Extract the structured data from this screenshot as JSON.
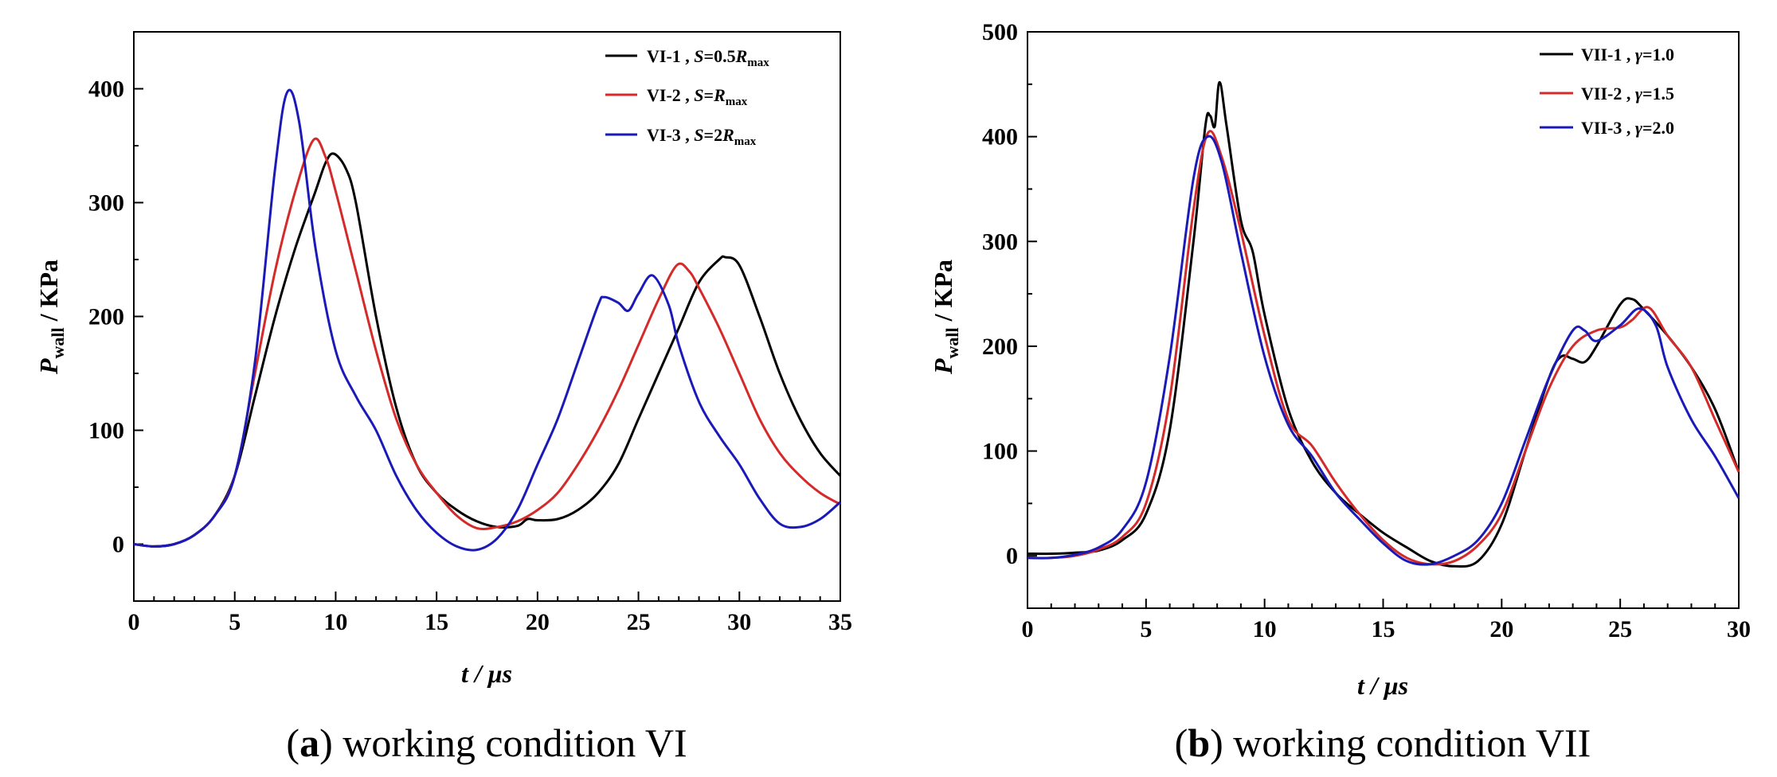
{
  "chart_data": [
    {
      "type": "line",
      "caption_letter": "a",
      "caption_rest": " working condition VI",
      "xlabel": "t / μs",
      "ylabel_main": "P",
      "ylabel_sub": "wall",
      "ylabel_rest": " / KPa",
      "xlim": [
        0,
        35
      ],
      "ylim": [
        -50,
        450
      ],
      "xticks": [
        0,
        5,
        10,
        15,
        20,
        25,
        30,
        35
      ],
      "yticks": [
        0,
        100,
        200,
        300,
        400
      ],
      "series": [
        {
          "name": "VI-1",
          "legend_prefix": "VI-1 , ",
          "legend_symbol": "S",
          "legend_value": "=0.5",
          "legend_R": "R",
          "legend_sub": "max",
          "color": "#000000",
          "points": [
            [
              0,
              0
            ],
            [
              1,
              -2
            ],
            [
              2,
              0
            ],
            [
              3,
              8
            ],
            [
              4,
              25
            ],
            [
              5,
              60
            ],
            [
              6,
              130
            ],
            [
              7,
              200
            ],
            [
              8,
              260
            ],
            [
              9,
              310
            ],
            [
              9.5,
              335
            ],
            [
              9.9,
              343
            ],
            [
              10.5,
              330
            ],
            [
              11,
              300
            ],
            [
              12,
              200
            ],
            [
              13,
              120
            ],
            [
              14,
              70
            ],
            [
              15,
              45
            ],
            [
              16,
              30
            ],
            [
              17,
              20
            ],
            [
              18,
              15
            ],
            [
              19,
              16
            ],
            [
              19.5,
              22
            ],
            [
              20,
              21
            ],
            [
              21,
              22
            ],
            [
              22,
              30
            ],
            [
              23,
              45
            ],
            [
              24,
              70
            ],
            [
              25,
              110
            ],
            [
              26,
              150
            ],
            [
              27,
              190
            ],
            [
              28,
              230
            ],
            [
              29,
              250
            ],
            [
              29.3,
              252
            ],
            [
              30,
              245
            ],
            [
              31,
              200
            ],
            [
              32,
              150
            ],
            [
              33,
              110
            ],
            [
              34,
              80
            ],
            [
              35,
              60
            ]
          ]
        },
        {
          "name": "VI-2",
          "legend_prefix": "VI-2 , ",
          "legend_symbol": "S",
          "legend_value": "=",
          "legend_R": "R",
          "legend_sub": "max",
          "color": "#d42a2a",
          "points": [
            [
              0,
              0
            ],
            [
              1,
              -2
            ],
            [
              2,
              0
            ],
            [
              3,
              8
            ],
            [
              4,
              25
            ],
            [
              5,
              60
            ],
            [
              6,
              150
            ],
            [
              7,
              240
            ],
            [
              8,
              310
            ],
            [
              8.9,
              355
            ],
            [
              9.5,
              340
            ],
            [
              10,
              310
            ],
            [
              11,
              240
            ],
            [
              12,
              170
            ],
            [
              13,
              110
            ],
            [
              14,
              70
            ],
            [
              15,
              45
            ],
            [
              16,
              25
            ],
            [
              17,
              14
            ],
            [
              18,
              15
            ],
            [
              19,
              20
            ],
            [
              20,
              30
            ],
            [
              21,
              45
            ],
            [
              22,
              70
            ],
            [
              23,
              100
            ],
            [
              24,
              135
            ],
            [
              25,
              175
            ],
            [
              26,
              215
            ],
            [
              26.9,
              245
            ],
            [
              27.5,
              240
            ],
            [
              28,
              225
            ],
            [
              29,
              190
            ],
            [
              30,
              150
            ],
            [
              31,
              110
            ],
            [
              32,
              80
            ],
            [
              33,
              60
            ],
            [
              34,
              45
            ],
            [
              35,
              35
            ]
          ]
        },
        {
          "name": "VI-3",
          "legend_prefix": "VI-3 , ",
          "legend_symbol": "S",
          "legend_value": "=2",
          "legend_R": "R",
          "legend_sub": "max",
          "color": "#1a1ab8",
          "points": [
            [
              0,
              0
            ],
            [
              1,
              -2
            ],
            [
              2,
              0
            ],
            [
              3,
              8
            ],
            [
              4,
              25
            ],
            [
              5,
              60
            ],
            [
              6,
              160
            ],
            [
              7,
              330
            ],
            [
              7.6,
              397
            ],
            [
              8.2,
              370
            ],
            [
              9,
              260
            ],
            [
              10,
              170
            ],
            [
              11,
              130
            ],
            [
              12,
              100
            ],
            [
              13,
              60
            ],
            [
              14,
              30
            ],
            [
              15,
              10
            ],
            [
              16,
              -2
            ],
            [
              17,
              -5
            ],
            [
              18,
              5
            ],
            [
              19,
              30
            ],
            [
              20,
              70
            ],
            [
              21,
              110
            ],
            [
              22,
              160
            ],
            [
              23,
              210
            ],
            [
              23.3,
              217
            ],
            [
              24,
              212
            ],
            [
              24.5,
              205
            ],
            [
              25,
              220
            ],
            [
              25.7,
              236
            ],
            [
              26.5,
              210
            ],
            [
              27,
              175
            ],
            [
              28,
              125
            ],
            [
              29,
              95
            ],
            [
              30,
              70
            ],
            [
              31,
              40
            ],
            [
              32,
              18
            ],
            [
              33,
              15
            ],
            [
              34,
              22
            ],
            [
              35,
              37
            ]
          ]
        }
      ]
    },
    {
      "type": "line",
      "caption_letter": "b",
      "caption_rest": " working condition VII",
      "xlabel": "t / μs",
      "ylabel_main": "P",
      "ylabel_sub": "wall",
      "ylabel_rest": " / KPa",
      "xlim": [
        0,
        30
      ],
      "ylim": [
        -50,
        500
      ],
      "xticks": [
        0,
        5,
        10,
        15,
        20,
        25,
        30
      ],
      "yticks": [
        0,
        100,
        200,
        300,
        400,
        500
      ],
      "series": [
        {
          "name": "VII-1",
          "legend_prefix": "VII-1 , ",
          "legend_symbol": "γ",
          "legend_value": "=1.0",
          "legend_R": "",
          "legend_sub": "",
          "color": "#000000",
          "points": [
            [
              0,
              2
            ],
            [
              1,
              2
            ],
            [
              2,
              3
            ],
            [
              3,
              5
            ],
            [
              4,
              15
            ],
            [
              5,
              40
            ],
            [
              6,
              120
            ],
            [
              7,
              300
            ],
            [
              7.5,
              410
            ],
            [
              7.7,
              420
            ],
            [
              7.9,
              410
            ],
            [
              8.1,
              452
            ],
            [
              8.4,
              410
            ],
            [
              9,
              320
            ],
            [
              9.5,
              290
            ],
            [
              10,
              230
            ],
            [
              11,
              140
            ],
            [
              12,
              90
            ],
            [
              13,
              60
            ],
            [
              14,
              40
            ],
            [
              15,
              22
            ],
            [
              16,
              8
            ],
            [
              17,
              -5
            ],
            [
              18,
              -10
            ],
            [
              19,
              -5
            ],
            [
              20,
              30
            ],
            [
              21,
              100
            ],
            [
              22,
              170
            ],
            [
              22.5,
              190
            ],
            [
              23,
              188
            ],
            [
              23.5,
              185
            ],
            [
              24,
              200
            ],
            [
              25,
              240
            ],
            [
              25.5,
              245
            ],
            [
              26,
              235
            ],
            [
              27,
              210
            ],
            [
              28,
              180
            ],
            [
              29,
              140
            ],
            [
              30,
              80
            ]
          ]
        },
        {
          "name": "VII-2",
          "legend_prefix": "VII-2 , ",
          "legend_symbol": "γ",
          "legend_value": "=1.5",
          "legend_R": "",
          "legend_sub": "",
          "color": "#d42a2a",
          "points": [
            [
              0,
              -2
            ],
            [
              1,
              -2
            ],
            [
              2,
              0
            ],
            [
              3,
              6
            ],
            [
              4,
              18
            ],
            [
              5,
              50
            ],
            [
              6,
              150
            ],
            [
              7,
              330
            ],
            [
              7.6,
              403
            ],
            [
              8.2,
              380
            ],
            [
              9,
              310
            ],
            [
              10,
              210
            ],
            [
              11,
              130
            ],
            [
              12,
              105
            ],
            [
              13,
              70
            ],
            [
              14,
              40
            ],
            [
              15,
              15
            ],
            [
              16,
              -2
            ],
            [
              17,
              -8
            ],
            [
              18,
              -5
            ],
            [
              19,
              10
            ],
            [
              20,
              40
            ],
            [
              21,
              100
            ],
            [
              22,
              160
            ],
            [
              23,
              200
            ],
            [
              24,
              215
            ],
            [
              25,
              218
            ],
            [
              25.5,
              225
            ],
            [
              26.2,
              237
            ],
            [
              27,
              210
            ],
            [
              28,
              180
            ],
            [
              29,
              130
            ],
            [
              30,
              80
            ]
          ]
        },
        {
          "name": "VII-3",
          "legend_prefix": "VII-3 , ",
          "legend_symbol": "γ",
          "legend_value": "=2.0",
          "legend_R": "",
          "legend_sub": "",
          "color": "#1a1ab8",
          "points": [
            [
              0,
              -2
            ],
            [
              1,
              -2
            ],
            [
              2,
              1
            ],
            [
              3,
              8
            ],
            [
              4,
              25
            ],
            [
              5,
              70
            ],
            [
              6,
              190
            ],
            [
              7,
              360
            ],
            [
              7.6,
              400
            ],
            [
              8.2,
              375
            ],
            [
              9,
              290
            ],
            [
              10,
              190
            ],
            [
              11,
              125
            ],
            [
              12,
              95
            ],
            [
              13,
              60
            ],
            [
              14,
              35
            ],
            [
              15,
              12
            ],
            [
              16,
              -5
            ],
            [
              17,
              -8
            ],
            [
              18,
              0
            ],
            [
              19,
              15
            ],
            [
              20,
              50
            ],
            [
              21,
              110
            ],
            [
              22,
              170
            ],
            [
              23,
              215
            ],
            [
              23.5,
              215
            ],
            [
              24,
              205
            ],
            [
              25,
              220
            ],
            [
              25.8,
              236
            ],
            [
              26.5,
              220
            ],
            [
              27,
              180
            ],
            [
              28,
              130
            ],
            [
              29,
              95
            ],
            [
              30,
              55
            ]
          ]
        }
      ]
    }
  ]
}
